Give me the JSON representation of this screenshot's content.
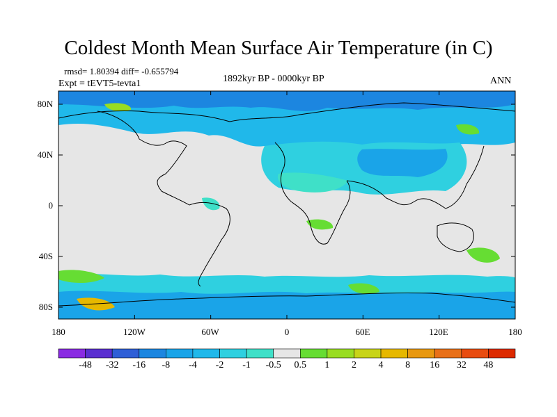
{
  "title": "Coldest Month Mean Surface Air Temperature (in C)",
  "stats": "rmsd= 1.80394 diff= -0.655794",
  "experiment": "Expt = tEVT5-tevta1",
  "period": "1892kyr BP - 0000kyr BP",
  "season": "ANN",
  "lat_labels": [
    "80N",
    "40N",
    "0",
    "40S",
    "80S"
  ],
  "lon_labels": [
    "180",
    "120W",
    "60W",
    "0",
    "60E",
    "120E",
    "180"
  ],
  "colorbar": {
    "labels": [
      "-48",
      "-32",
      "-16",
      "-8",
      "-4",
      "-2",
      "-1",
      "-0.5",
      "0.5",
      "1",
      "2",
      "4",
      "8",
      "16",
      "32",
      "48"
    ],
    "colors": [
      "#8a2be2",
      "#5a2fd0",
      "#2f5fd6",
      "#1c86e0",
      "#1aa4e8",
      "#20b8ea",
      "#2fd0e0",
      "#3fe0c8",
      "#e6e6e6",
      "#66dd33",
      "#99dd22",
      "#c8d418",
      "#e6b800",
      "#e89810",
      "#e87018",
      "#e84c10",
      "#dd2a00"
    ]
  }
}
